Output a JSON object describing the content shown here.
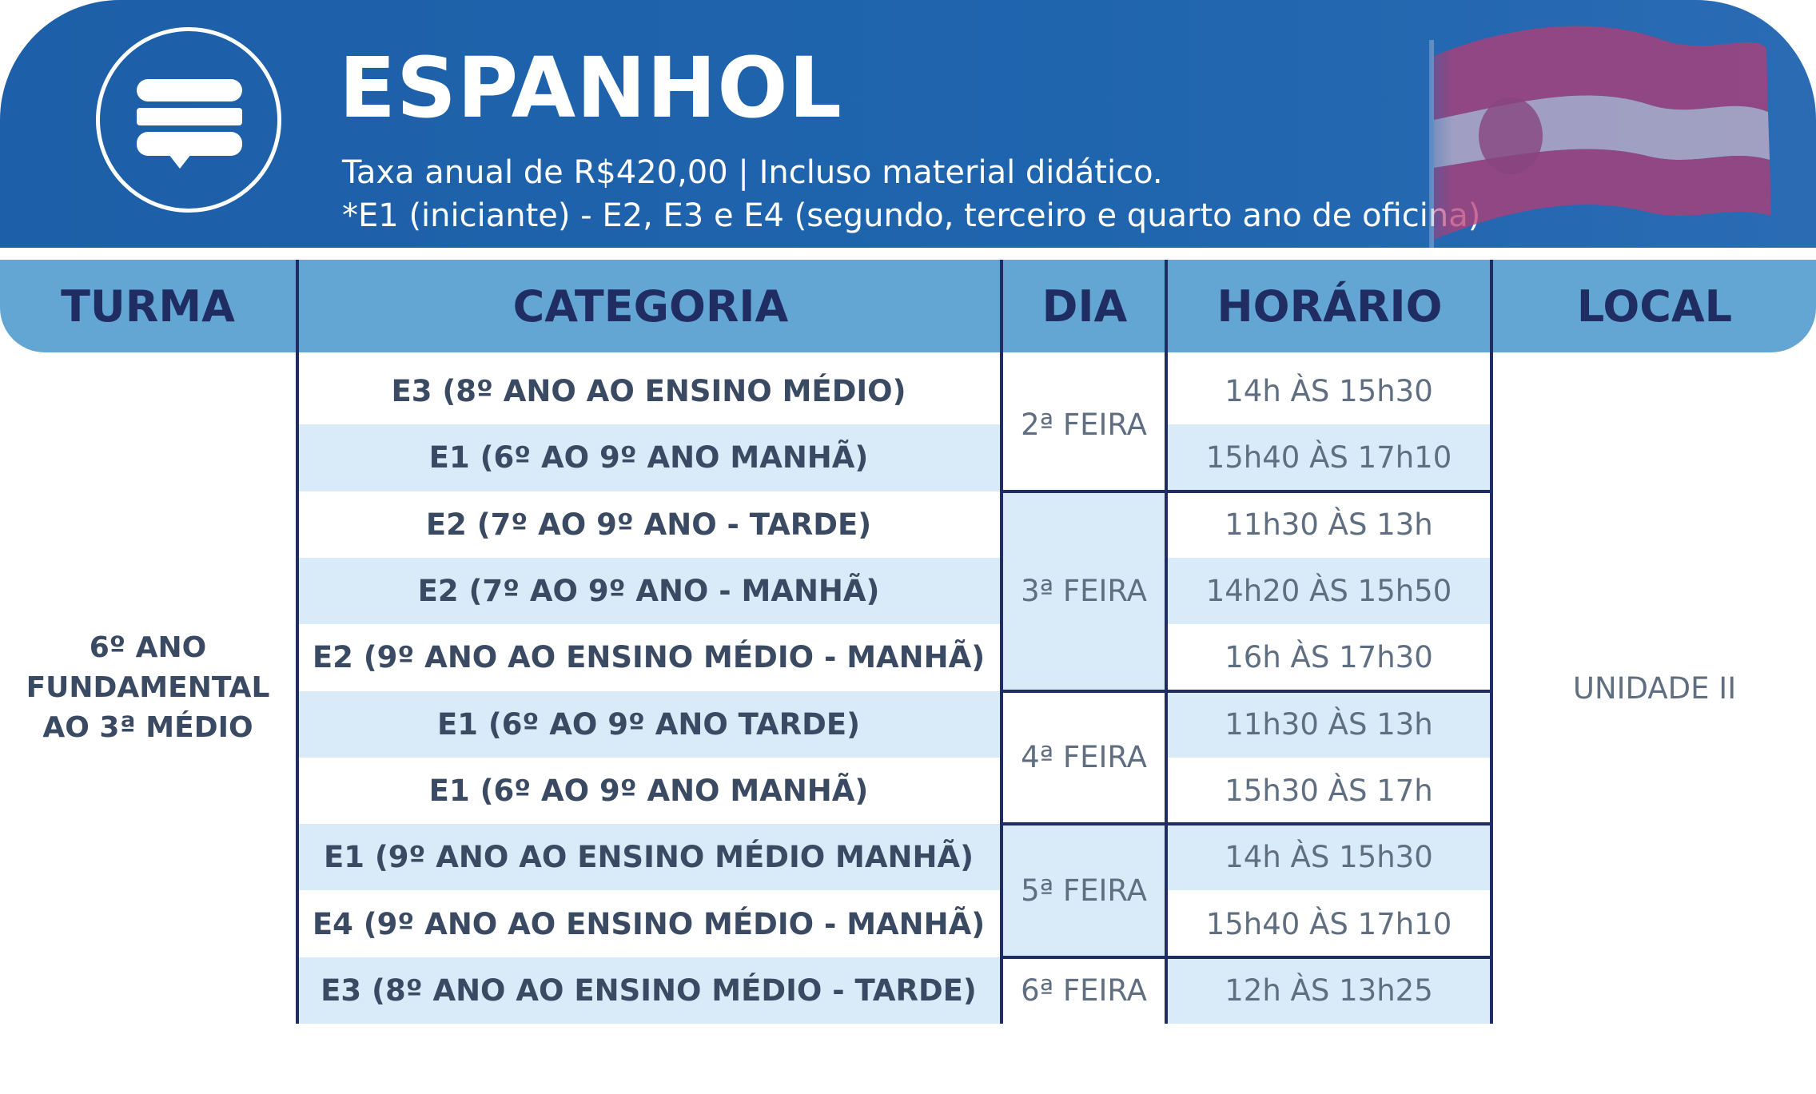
{
  "header": {
    "title": "ESPANHOL",
    "subtitle_line1": "Taxa anual de R$420,00 | Incluso material didático.",
    "subtitle_line2": "*E1 (iniciante) - E2, E3 e E4 (segundo, terceiro e quarto ano de oficina)",
    "icon": "chat-bubble-icon",
    "flag": "spain-flag"
  },
  "columns": [
    "TURMA",
    "CATEGORIA",
    "DIA",
    "HORÁRIO",
    "LOCAL"
  ],
  "turma": "6º ANO FUNDAMENTAL AO 3ª MÉDIO",
  "local": "UNIDADE II",
  "rows": [
    {
      "categoria": "E3 (8º ANO AO ENSINO MÉDIO)",
      "horario": "14h ÀS 15h30"
    },
    {
      "categoria": "E1 (6º AO 9º ANO MANHÃ)",
      "horario": "15h40 ÀS 17h10"
    },
    {
      "categoria": "E2 (7º AO 9º ANO - TARDE)",
      "horario": "11h30 ÀS 13h"
    },
    {
      "categoria": "E2 (7º AO 9º ANO - MANHÃ)",
      "horario": "14h20  ÀS 15h50"
    },
    {
      "categoria": "E2 (9º ANO AO ENSINO MÉDIO - MANHÃ)",
      "horario": "16h ÀS 17h30"
    },
    {
      "categoria": "E1 (6º AO 9º ANO TARDE)",
      "horario": "11h30 ÀS 13h"
    },
    {
      "categoria": "E1 (6º AO 9º ANO MANHÃ)",
      "horario": "15h30 ÀS 17h"
    },
    {
      "categoria": "E1 (9º ANO AO ENSINO MÉDIO MANHÃ)",
      "horario": "14h ÀS 15h30"
    },
    {
      "categoria": "E4 (9º ANO AO ENSINO MÉDIO - MANHÃ)",
      "horario": "15h40 ÀS 17h10"
    },
    {
      "categoria": "E3 (8º ANO AO ENSINO MÉDIO - TARDE)",
      "horario": "12h ÀS 13h25"
    }
  ],
  "dias": [
    {
      "label": "2ª FEIRA",
      "first_row": 0,
      "row_count": 2
    },
    {
      "label": "3ª FEIRA",
      "first_row": 2,
      "row_count": 3
    },
    {
      "label": "4ª FEIRA",
      "first_row": 5,
      "row_count": 2
    },
    {
      "label": "5ª FEIRA",
      "first_row": 7,
      "row_count": 2
    },
    {
      "label": "6ª FEIRA",
      "first_row": 9,
      "row_count": 1
    }
  ],
  "colors": {
    "header_blue": "#1f63ad",
    "table_header": "#63a6d4",
    "row_stripe": "#d9ebf8",
    "text_dark": "#1f2d63"
  }
}
